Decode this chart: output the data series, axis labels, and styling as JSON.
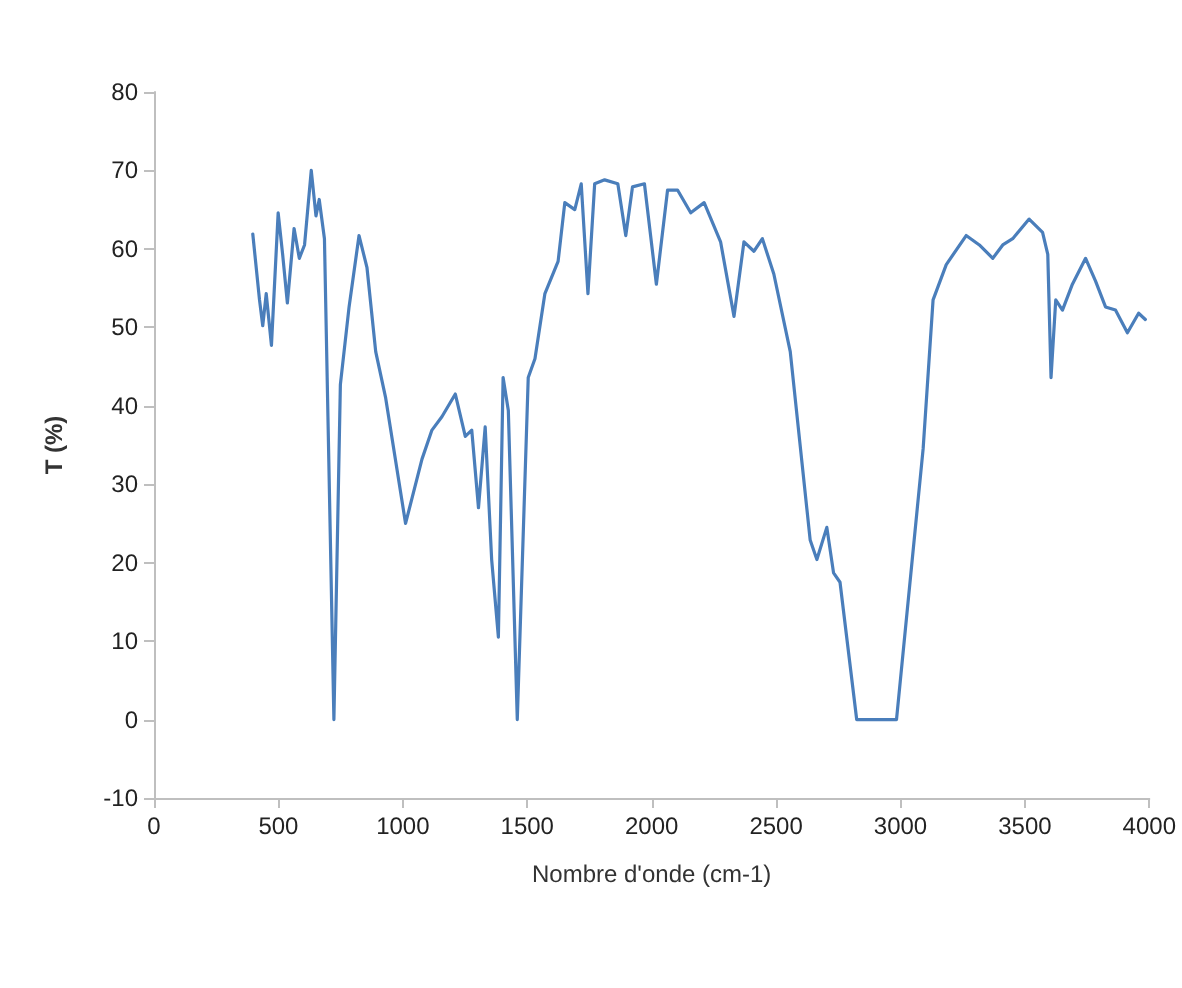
{
  "chart_data": {
    "type": "line",
    "xlabel": "Nombre d'onde (cm-1)",
    "ylabel": "T (%)",
    "xlim": [
      0,
      4000
    ],
    "xticks": [
      0,
      500,
      1000,
      1500,
      2000,
      2500,
      3000,
      3500,
      4000
    ],
    "ylim": [
      -10,
      80
    ],
    "yticks": [
      -10,
      0,
      10,
      20,
      30,
      40,
      50,
      60,
      70,
      80
    ],
    "grid": false,
    "marker": "none",
    "line_style": "solid",
    "series": [
      {
        "color": "#4a7ebb",
        "x": [
          397,
          424,
          437,
          451,
          472,
          499,
          517,
          536,
          563,
          584,
          605,
          632,
          651,
          664,
          685,
          723,
          749,
          784,
          824,
          856,
          891,
          931,
          1011,
          1077,
          1117,
          1157,
          1211,
          1251,
          1277,
          1304,
          1331,
          1357,
          1384,
          1403,
          1424,
          1460,
          1504,
          1531,
          1571,
          1624,
          1651,
          1691,
          1717,
          1744,
          1771,
          1811,
          1864,
          1896,
          1923,
          1971,
          2019,
          2064,
          2104,
          2157,
          2211,
          2277,
          2331,
          2371,
          2411,
          2445,
          2491,
          2557,
          2637,
          2664,
          2704,
          2731,
          2757,
          2824,
          2984,
          3091,
          3131,
          3184,
          3264,
          3317,
          3371,
          3411,
          3451,
          3517,
          3571,
          3592,
          3605,
          3624,
          3651,
          3691,
          3744,
          3784,
          3824,
          3864,
          3912,
          3957,
          3984
        ],
        "values": [
          61.9,
          53.5,
          50.2,
          54.3,
          47.7,
          64.6,
          59.3,
          53.1,
          62.6,
          58.8,
          60.5,
          70,
          64.2,
          66.3,
          61.3,
          0,
          42.7,
          52.6,
          61.7,
          57.6,
          46.9,
          41,
          25,
          33.2,
          36.9,
          38.6,
          41.5,
          36.1,
          36.9,
          27,
          37.3,
          20.4,
          10.5,
          43.6,
          39.4,
          0,
          43.6,
          46,
          54.3,
          58.4,
          65.9,
          65,
          68.3,
          54.3,
          68.3,
          68.8,
          68.3,
          61.7,
          67.9,
          68.3,
          55.5,
          67.5,
          67.5,
          64.6,
          65.9,
          60.9,
          51.4,
          60.9,
          59.7,
          61.3,
          56.8,
          46.9,
          22.9,
          20.4,
          24.5,
          18.7,
          17.5,
          0,
          0,
          34.5,
          53.5,
          58,
          61.7,
          60.5,
          58.8,
          60.5,
          61.3,
          63.8,
          62.1,
          59.3,
          43.6,
          53.5,
          52.2,
          55.5,
          58.8,
          55.9,
          52.6,
          52.2,
          49.3,
          51.8,
          51
        ]
      }
    ]
  }
}
